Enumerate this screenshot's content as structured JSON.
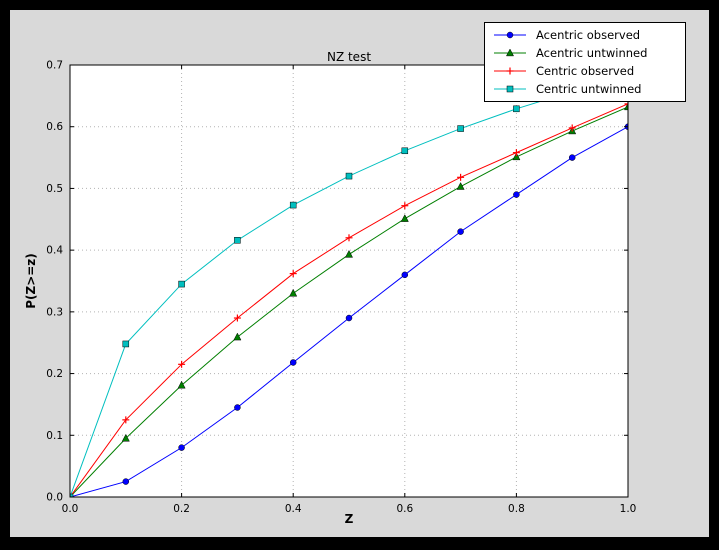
{
  "window": {
    "outer_background": "#000000",
    "figure_background": "#d9d9d9",
    "plot_background": "#ffffff"
  },
  "chart_data": {
    "type": "line",
    "title": "NZ test",
    "xlabel": "Z",
    "ylabel": "P(Z>=z)",
    "xlim": [
      0.0,
      1.0
    ],
    "ylim": [
      0.0,
      0.7
    ],
    "xticks": [
      0.0,
      0.2,
      0.4,
      0.6,
      0.8,
      1.0
    ],
    "yticks": [
      0.0,
      0.1,
      0.2,
      0.3,
      0.4,
      0.5,
      0.6,
      0.7
    ],
    "grid": true,
    "legend_position": "upper right",
    "x": [
      0.0,
      0.1,
      0.2,
      0.3,
      0.4,
      0.5,
      0.6,
      0.7,
      0.8,
      0.9,
      1.0
    ],
    "series": [
      {
        "name": "Acentric observed",
        "color": "#0000ff",
        "marker": "circle",
        "values": [
          0.0,
          0.025,
          0.08,
          0.145,
          0.218,
          0.29,
          0.36,
          0.43,
          0.49,
          0.55,
          0.6
        ]
      },
      {
        "name": "Acentric untwinned",
        "color": "#007f00",
        "marker": "triangle-up",
        "values": [
          0.0,
          0.095,
          0.181,
          0.259,
          0.33,
          0.393,
          0.451,
          0.503,
          0.551,
          0.593,
          0.632
        ]
      },
      {
        "name": "Centric observed",
        "color": "#ff0000",
        "marker": "plus",
        "values": [
          0.0,
          0.125,
          0.215,
          0.29,
          0.362,
          0.42,
          0.472,
          0.518,
          0.558,
          0.598,
          0.637
        ]
      },
      {
        "name": "Centric untwinned",
        "color": "#00bfbf",
        "marker": "square",
        "values": [
          0.0,
          0.248,
          0.345,
          0.416,
          0.473,
          0.52,
          0.561,
          0.597,
          0.629,
          0.657,
          0.683
        ]
      }
    ]
  }
}
